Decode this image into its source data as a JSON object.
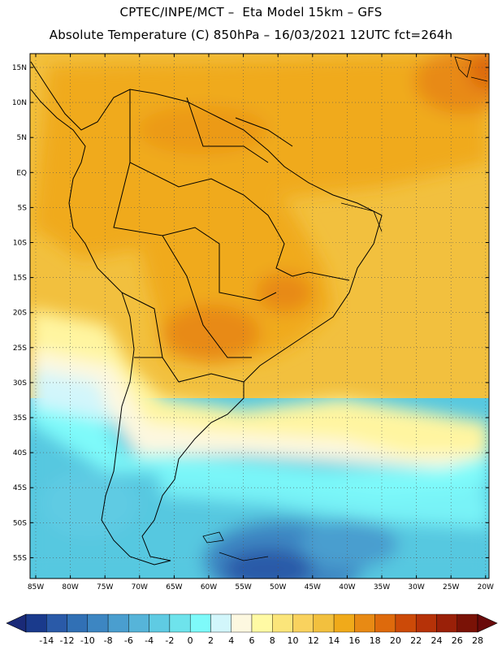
{
  "header": {
    "line1": "CPTEC/INPE/MCT –  Eta Model 15km – GFS",
    "line2": "Absolute Temperature (C) 850hPa – 16/03/2021 12UTC fct=264h"
  },
  "map": {
    "lat_labels": [
      "15N",
      "10N",
      "5N",
      "EQ",
      "5S",
      "10S",
      "15S",
      "20S",
      "25S",
      "30S",
      "35S",
      "40S",
      "45S",
      "50S",
      "55S"
    ],
    "lon_labels": [
      "85W",
      "80W",
      "75W",
      "70W",
      "65W",
      "60W",
      "55W",
      "50W",
      "45W",
      "40W",
      "35W",
      "30W",
      "25W",
      "20W"
    ]
  },
  "legend": {
    "labels": [
      "-14",
      "-12",
      "-10",
      "-8",
      "-6",
      "-4",
      "-2",
      "0",
      "2",
      "4",
      "6",
      "8",
      "10",
      "12",
      "14",
      "16",
      "18",
      "20",
      "22",
      "24",
      "26",
      "28"
    ],
    "colors": [
      "#1a3a8c",
      "#2a5aa8",
      "#3170b5",
      "#3d86c2",
      "#4a9ecf",
      "#56b4d9",
      "#5fcbe3",
      "#6ee3ec",
      "#7efafa",
      "#d2f6fb",
      "#fdf8e0",
      "#fffaa4",
      "#fbe57a",
      "#f9d25e",
      "#f2c03e",
      "#f0aa1a",
      "#e88a14",
      "#de6a0c",
      "#cc4a08",
      "#b63208",
      "#9a2008",
      "#7a1206"
    ],
    "end_left_color": "#1a2a78",
    "end_right_color": "#6a0a0a"
  },
  "colors": {
    "land_outline": "#000000",
    "grid": "#555555"
  }
}
